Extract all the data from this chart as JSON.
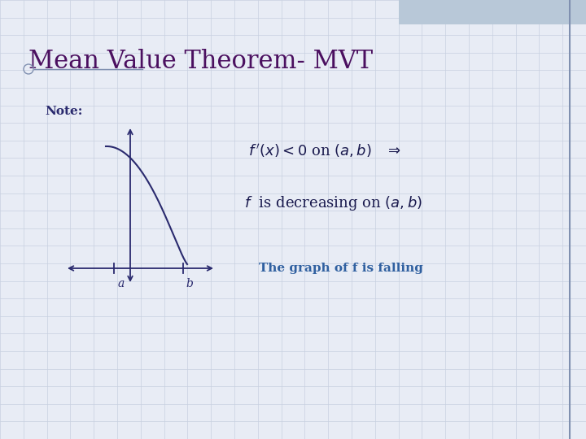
{
  "title": "Mean Value Theorem- MVT",
  "title_color": "#4B1060",
  "title_fontsize": 22,
  "bg_color": "#E8ECF5",
  "note_text": "Note:",
  "note_color": "#2a2a6e",
  "note_fontsize": 11,
  "eq_color": "#1a1a4e",
  "eq_fontsize": 13,
  "note2_text": "The graph of f is falling",
  "note2_color": "#3060a0",
  "note2_fontsize": 11,
  "axis_color": "#2a2a6e",
  "curve_color": "#2a2a6e",
  "grid_color": "#c8d0e0",
  "border_color": "#8090b0",
  "top_rect_color": "#b8c8d8",
  "underline_color": "#8090b0",
  "circle_color": "#8090b0"
}
